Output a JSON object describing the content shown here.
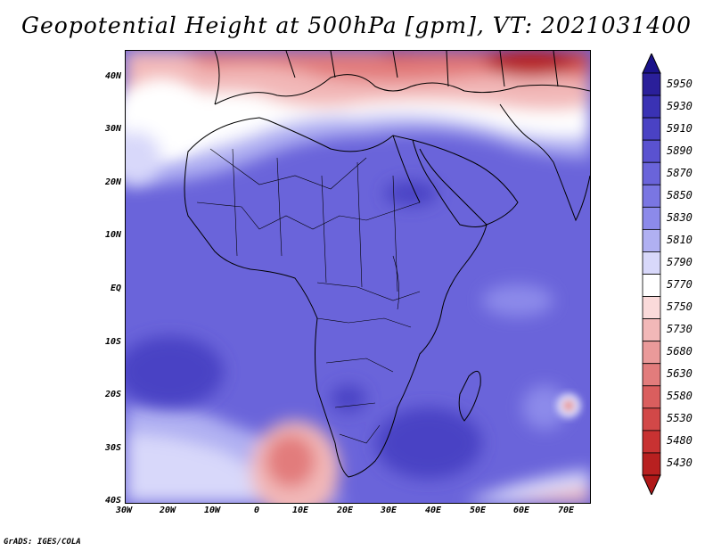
{
  "title": "Geopotential Height at 500hPa [gpm], VT: 2021031400",
  "footer": "GrADS: IGES/COLA",
  "map": {
    "lat_labels": [
      "40N",
      "30N",
      "20N",
      "10N",
      "EQ",
      "10S",
      "20S",
      "30S",
      "40S"
    ],
    "lon_labels": [
      "30W",
      "20W",
      "10W",
      "0",
      "10E",
      "20E",
      "30E",
      "40E",
      "50E",
      "60E",
      "70E"
    ]
  },
  "colorbar": {
    "levels": [
      "5950",
      "5930",
      "5910",
      "5890",
      "5870",
      "5850",
      "5830",
      "5810",
      "5790",
      "5770",
      "5750",
      "5730",
      "5680",
      "5630",
      "5580",
      "5530",
      "5480",
      "5430"
    ],
    "colors": [
      "#2a1f9a",
      "#3a32b4",
      "#4a42c4",
      "#5a52d0",
      "#6a64da",
      "#7a76e2",
      "#8c8aea",
      "#b0b0f2",
      "#d8d8fa",
      "#ffffff",
      "#fadada",
      "#f2b8b8",
      "#ea9a9a",
      "#e27c7c",
      "#da5e5e",
      "#d24848",
      "#c83232",
      "#b82020"
    ],
    "top_color": "#1a128a",
    "bottom_color": "#b01818"
  }
}
